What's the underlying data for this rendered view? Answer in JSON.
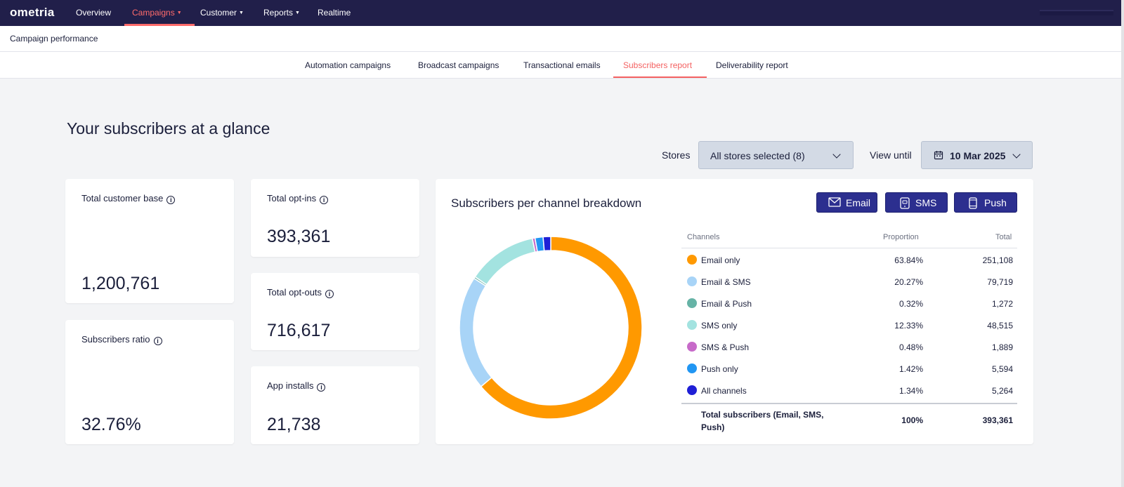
{
  "app": {
    "logo": "ometria",
    "nav": [
      {
        "label": "Overview",
        "dropdown": false
      },
      {
        "label": "Campaigns",
        "dropdown": true,
        "active": true
      },
      {
        "label": "Customer",
        "dropdown": true
      },
      {
        "label": "Reports",
        "dropdown": true
      },
      {
        "label": "Realtime",
        "dropdown": false
      }
    ]
  },
  "breadcrumb": "Campaign performance",
  "tabs": [
    {
      "label": "Automation campaigns"
    },
    {
      "label": "Broadcast campaigns"
    },
    {
      "label": "Transactional emails"
    },
    {
      "label": "Subscribers report",
      "active": true
    },
    {
      "label": "Deliverability report"
    }
  ],
  "page_title": "Your subscribers at a glance",
  "filters": {
    "stores_label": "Stores",
    "stores_value": "All stores selected (8)",
    "view_until_label": "View until",
    "view_until_value": "10 Mar 2025"
  },
  "cards": {
    "total_customer_base": {
      "label": "Total customer base",
      "value": "1,200,761"
    },
    "subscribers_ratio": {
      "label": "Subscribers ratio",
      "value": "32.76%"
    },
    "total_opt_ins": {
      "label": "Total opt-ins",
      "value": "393,361"
    },
    "total_opt_outs": {
      "label": "Total opt-outs",
      "value": "716,617"
    },
    "app_installs": {
      "label": "App installs",
      "value": "21,738"
    }
  },
  "breakdown": {
    "title": "Subscribers per channel breakdown",
    "buttons": {
      "email": "Email",
      "sms": "SMS",
      "push": "Push"
    },
    "columns": {
      "channels": "Channels",
      "proportion": "Proportion",
      "total": "Total"
    },
    "rows": [
      {
        "name": "Email only",
        "proportion": "63.84%",
        "total": "251,108",
        "color": "#ff9900"
      },
      {
        "name": "Email & SMS",
        "proportion": "20.27%",
        "total": "79,719",
        "color": "#a8d4f7"
      },
      {
        "name": "Email & Push",
        "proportion": "0.32%",
        "total": "1,272",
        "color": "#66b3a6"
      },
      {
        "name": "SMS only",
        "proportion": "12.33%",
        "total": "48,515",
        "color": "#a3e3e0"
      },
      {
        "name": "SMS & Push",
        "proportion": "0.48%",
        "total": "1,889",
        "color": "#c76ac9"
      },
      {
        "name": "Push only",
        "proportion": "1.42%",
        "total": "5,594",
        "color": "#2196f3"
      },
      {
        "name": "All channels",
        "proportion": "1.34%",
        "total": "5,264",
        "color": "#1f1fd6"
      }
    ],
    "total_row": {
      "name": "Total subscribers (Email, SMS, Push)",
      "proportion": "100%",
      "total": "393,361"
    }
  }
}
